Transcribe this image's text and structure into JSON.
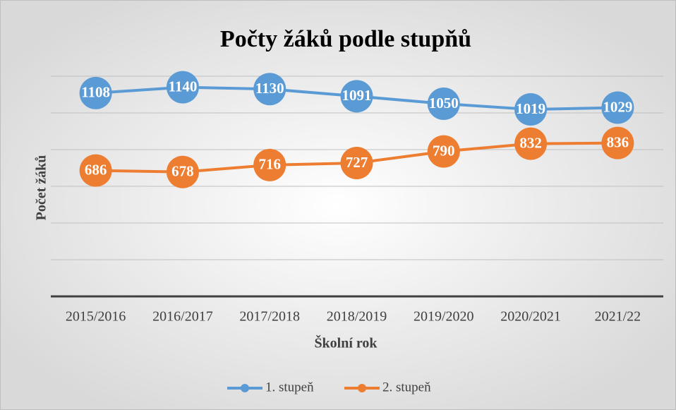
{
  "chart_data": {
    "type": "line",
    "title": "Počty žáků podle stupňů",
    "x_label": "Školní rok",
    "y_label": "Počet žáků",
    "categories": [
      "2015/2016",
      "2016/2017",
      "2017/2018",
      "2018/2019",
      "2019/2020",
      "2020/2021",
      "2021/22"
    ],
    "series": [
      {
        "name": "1. stupeň",
        "color": "#5b9bd5",
        "values": [
          1108,
          1140,
          1130,
          1091,
          1050,
          1019,
          1029
        ]
      },
      {
        "name": "2. stupeň",
        "color": "#ed7d31",
        "values": [
          686,
          678,
          716,
          727,
          790,
          832,
          836
        ]
      }
    ],
    "ylim": [
      0,
      1200
    ],
    "yticks": [
      0,
      200,
      400,
      600,
      800,
      1000,
      1200
    ],
    "grid": true,
    "legend": "bottom"
  }
}
